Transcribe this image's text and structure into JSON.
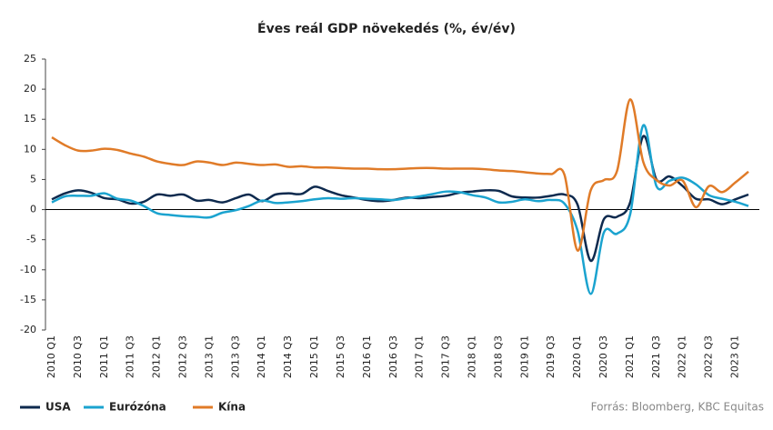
{
  "chart_data": {
    "type": "line",
    "title": "Éves reál GDP növekedés (%, év/év)",
    "source": "Forrás: Bloomberg,  KBC Equitas",
    "categories": [
      "2010 Q1",
      null,
      "2010 Q3",
      null,
      "2011 Q1",
      null,
      "2011 Q3",
      null,
      "2012 Q1",
      null,
      "2012 Q3",
      null,
      "2013 Q1",
      null,
      "2013 Q3",
      null,
      "2014 Q1",
      null,
      "2014 Q3",
      null,
      "2015 Q1",
      null,
      "2015 Q3",
      null,
      "2016 Q1",
      null,
      "2016 Q3",
      null,
      "2017 Q1",
      null,
      "2017 Q3",
      null,
      "2018 Q1",
      null,
      "2018 Q3",
      null,
      "2019 Q1",
      null,
      "2019 Q3",
      null,
      "2020 Q1",
      null,
      "2020 Q3",
      null,
      "2021 Q1",
      null,
      "2021 Q3",
      null,
      "2022 Q1",
      null,
      "2022 Q3",
      null,
      "2023 Q1",
      null
    ],
    "series": [
      {
        "name": "USA",
        "color": "#0e2a4e",
        "values": [
          1.7,
          2.7,
          3.2,
          2.8,
          1.9,
          1.7,
          1.0,
          1.3,
          2.5,
          2.3,
          2.5,
          1.5,
          1.6,
          1.2,
          1.9,
          2.5,
          1.4,
          2.5,
          2.7,
          2.6,
          3.8,
          3.1,
          2.4,
          2.0,
          1.6,
          1.4,
          1.6,
          2.0,
          1.9,
          2.1,
          2.3,
          2.8,
          3.0,
          3.2,
          3.1,
          2.2,
          2.0,
          2.0,
          2.3,
          2.5,
          0.8,
          -8.5,
          -1.6,
          -1.2,
          1.2,
          12.2,
          5.0,
          5.5,
          3.9,
          1.8,
          1.7,
          0.9,
          1.7,
          2.5
        ]
      },
      {
        "name": "Eurózóna",
        "color": "#1ba3cf",
        "values": [
          1.2,
          2.2,
          2.3,
          2.3,
          2.7,
          1.8,
          1.5,
          0.6,
          -0.6,
          -0.9,
          -1.1,
          -1.2,
          -1.3,
          -0.5,
          -0.1,
          0.6,
          1.5,
          1.1,
          1.2,
          1.4,
          1.7,
          1.9,
          1.8,
          1.9,
          1.8,
          1.7,
          1.6,
          1.9,
          2.2,
          2.6,
          3.0,
          2.9,
          2.4,
          2.0,
          1.2,
          1.3,
          1.7,
          1.4,
          1.6,
          1.0,
          -3.5,
          -14.0,
          -3.8,
          -4.0,
          -0.8,
          14.0,
          3.9,
          4.8,
          5.3,
          4.2,
          2.4,
          1.8,
          1.3,
          0.6
        ]
      },
      {
        "name": "Kína",
        "color": "#e07b28",
        "values": [
          12.0,
          10.7,
          9.8,
          9.8,
          10.1,
          9.9,
          9.3,
          8.8,
          8.0,
          7.6,
          7.4,
          8.0,
          7.8,
          7.4,
          7.8,
          7.6,
          7.4,
          7.5,
          7.1,
          7.2,
          7.0,
          7.0,
          6.9,
          6.8,
          6.8,
          6.7,
          6.7,
          6.8,
          6.9,
          6.9,
          6.8,
          6.8,
          6.8,
          6.7,
          6.5,
          6.4,
          6.2,
          6.0,
          5.9,
          5.8,
          -6.8,
          3.2,
          4.9,
          6.4,
          18.3,
          7.9,
          4.9,
          4.0,
          4.8,
          0.4,
          3.9,
          2.9,
          4.5,
          6.3
        ]
      }
    ],
    "ylim": [
      -20,
      25
    ],
    "yticks": [
      -20,
      -15,
      -10,
      -5,
      0,
      5,
      10,
      15,
      20,
      25
    ],
    "legend": "bottom-left"
  }
}
